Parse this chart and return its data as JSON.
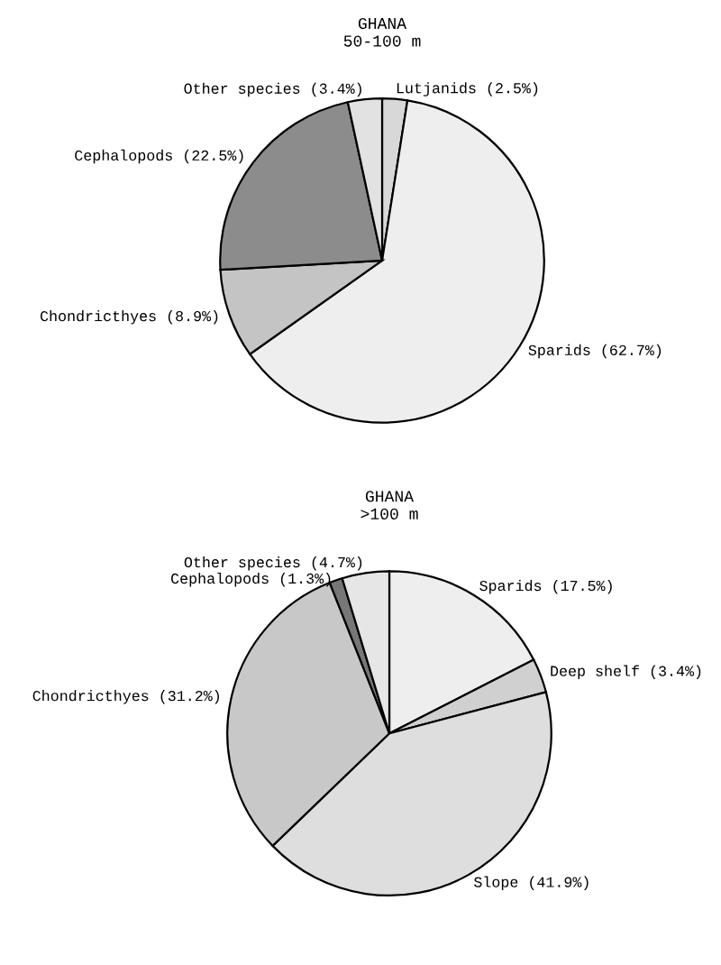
{
  "chart_data": [
    {
      "type": "pie",
      "title": "GHANA\n50-100 m",
      "categories": [
        "Lutjanids",
        "Sparids",
        "Chondricthyes",
        "Cephalopods",
        "Other species"
      ],
      "values": [
        2.5,
        62.7,
        8.9,
        22.5,
        3.4
      ],
      "value_labels": [
        "(2.5%)",
        "(62.7%)",
        "(8.9%)",
        "(22.5%)",
        "(3.4%)"
      ],
      "colors": [
        "#d8d8d8",
        "#eeeeee",
        "#c4c4c4",
        "#8c8c8c",
        "#e2e2e2"
      ]
    },
    {
      "type": "pie",
      "title": "GHANA\n>100 m",
      "categories": [
        "Sparids",
        "Deep shelf",
        "Slope",
        "Chondricthyes",
        "Cephalopods",
        "Other species"
      ],
      "values": [
        17.5,
        3.4,
        41.9,
        31.2,
        1.3,
        4.7
      ],
      "value_labels": [
        "(17.5%)",
        "(3.4%)",
        "(41.9%)",
        "(31.2%)",
        "(1.3%)",
        "(4.7%)"
      ],
      "colors": [
        "#eeeeee",
        "#d0d0d0",
        "#dedede",
        "#c8c8c8",
        "#777777",
        "#e6e6e6"
      ]
    }
  ]
}
